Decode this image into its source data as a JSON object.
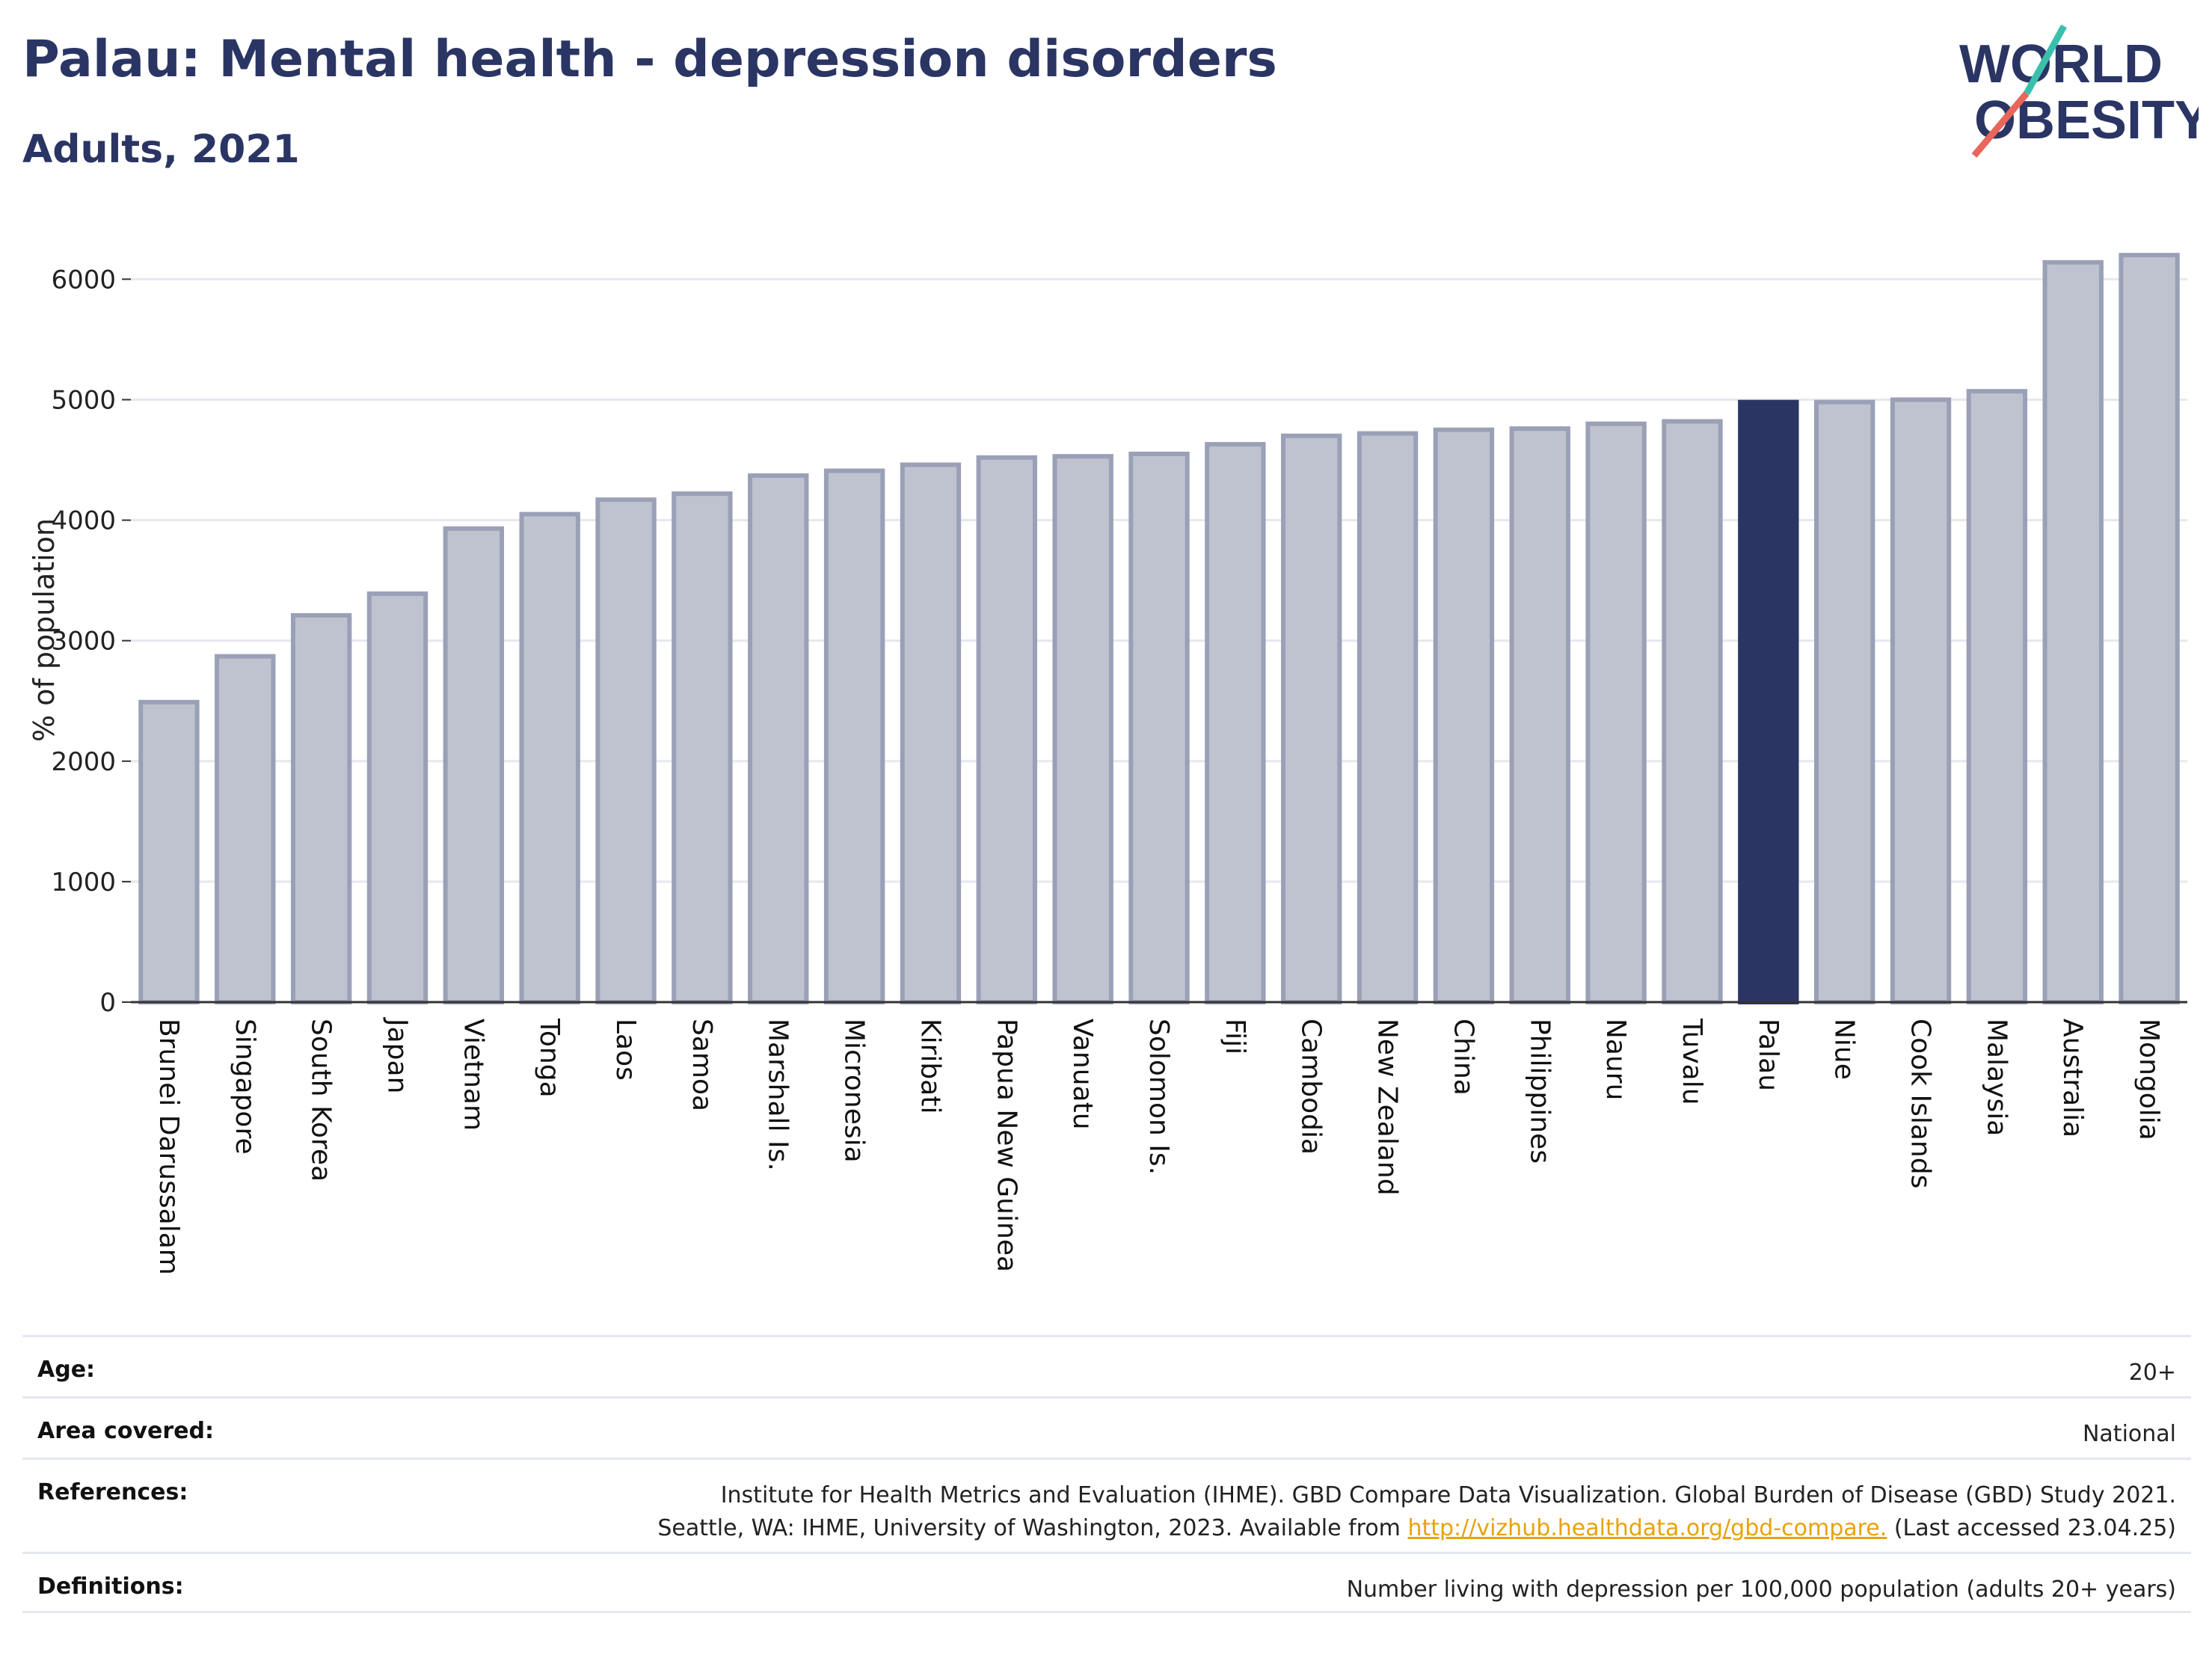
{
  "header": {
    "title": "Palau: Mental health - depression disorders",
    "subtitle": "Adults, 2021"
  },
  "logo": {
    "line1": "WORLD",
    "line2": "OBESITY",
    "text_color": "#2a3564",
    "accent_colors": [
      "#3bbfad",
      "#e8675a"
    ]
  },
  "chart_data": {
    "type": "bar",
    "ylabel": "% of population",
    "xlabel": "",
    "ylim": [
      0,
      6300
    ],
    "yticks": [
      0,
      1000,
      2000,
      3000,
      4000,
      5000,
      6000
    ],
    "grid": true,
    "highlight": "Palau",
    "colors": {
      "bar": "#bfc3d0",
      "bar_edge": "#9aa0b6",
      "highlight": "#2a3564",
      "grid": "#e6e8ee"
    },
    "categories": [
      "Brunei Darussalam",
      "Singapore",
      "South Korea",
      "Japan",
      "Vietnam",
      "Tonga",
      "Laos",
      "Samoa",
      "Marshall Is.",
      "Micronesia",
      "Kiribati",
      "Papua New Guinea",
      "Vanuatu",
      "Solomon Is.",
      "Fiji",
      "Cambodia",
      "New Zealand",
      "China",
      "Philippines",
      "Nauru",
      "Tuvalu",
      "Palau",
      "Niue",
      "Cook Islands",
      "Malaysia",
      "Australia",
      "Mongolia"
    ],
    "values": [
      2490,
      2870,
      3210,
      3390,
      3930,
      4050,
      4170,
      4220,
      4370,
      4410,
      4460,
      4520,
      4530,
      4550,
      4630,
      4700,
      4720,
      4750,
      4760,
      4800,
      4820,
      4980,
      4980,
      5000,
      5070,
      6140,
      6200
    ]
  },
  "meta": {
    "age_label": "Age:",
    "age_value": "20+",
    "area_label": "Area covered:",
    "area_value": "National",
    "references_label": "References:",
    "references_line1": "Institute for Health Metrics and Evaluation (IHME). GBD Compare Data Visualization. Global Burden of Disease (GBD) Study 2021.",
    "references_line2_pre": "Seattle, WA: IHME, University of Washington, 2023. Available from ",
    "references_link": "http://vizhub.healthdata.org/gbd-compare.",
    "references_line2_post": " (Last accessed 23.04.25)",
    "definitions_label": "Definitions:",
    "definitions_value": "Number living with depression per 100,000 population (adults 20+ years)"
  }
}
